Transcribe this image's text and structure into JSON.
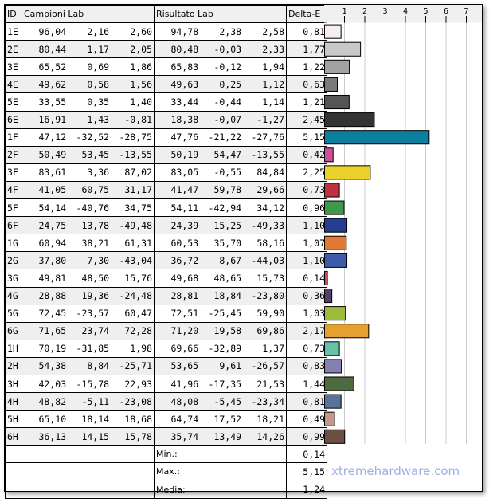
{
  "headers": {
    "id": "ID",
    "samples": "Campioni Lab",
    "result": "Risultato Lab",
    "delta": "Delta-E"
  },
  "chart_data": {
    "type": "bar",
    "orientation": "horizontal",
    "xlim": [
      0,
      7.7
    ],
    "ticks": [
      1,
      2,
      3,
      4,
      5,
      6,
      7
    ],
    "grid": true,
    "rows": [
      {
        "id": "1E",
        "s": [
          "96,04",
          "2,16",
          "2,60"
        ],
        "r": [
          "94,78",
          "2,38",
          "2,58"
        ],
        "de": 0.81,
        "color": "#f7eeee"
      },
      {
        "id": "2E",
        "s": [
          "80,44",
          "1,17",
          "2,05"
        ],
        "r": [
          "80,48",
          "-0,03",
          "2,33"
        ],
        "de": 1.77,
        "color": "#c8c8c6"
      },
      {
        "id": "3E",
        "s": [
          "65,52",
          "0,69",
          "1,86"
        ],
        "r": [
          "65,83",
          "-0,12",
          "1,94"
        ],
        "de": 1.22,
        "color": "#a2a2a0"
      },
      {
        "id": "4E",
        "s": [
          "49,62",
          "0,58",
          "1,56"
        ],
        "r": [
          "49,63",
          "0,25",
          "1,12"
        ],
        "de": 0.63,
        "color": "#7a7a7a"
      },
      {
        "id": "5E",
        "s": [
          "33,55",
          "0,35",
          "1,40"
        ],
        "r": [
          "33,44",
          "-0,44",
          "1,14"
        ],
        "de": 1.21,
        "color": "#555555"
      },
      {
        "id": "6E",
        "s": [
          "16,91",
          "1,43",
          "-0,81"
        ],
        "r": [
          "18,38",
          "-0,07",
          "-1,27"
        ],
        "de": 2.45,
        "color": "#333333"
      },
      {
        "id": "1F",
        "s": [
          "47,12",
          "-32,52",
          "-28,75"
        ],
        "r": [
          "47,76",
          "-21,22",
          "-27,76"
        ],
        "de": 5.15,
        "color": "#0a7f9e"
      },
      {
        "id": "2F",
        "s": [
          "50,49",
          "53,45",
          "-13,55"
        ],
        "r": [
          "50,19",
          "54,47",
          "-13,55"
        ],
        "de": 0.42,
        "color": "#cc4f98"
      },
      {
        "id": "3F",
        "s": [
          "83,61",
          "3,36",
          "87,02"
        ],
        "r": [
          "83,05",
          "-0,55",
          "84,84"
        ],
        "de": 2.25,
        "color": "#ecd12c"
      },
      {
        "id": "4F",
        "s": [
          "41,05",
          "60,75",
          "31,17"
        ],
        "r": [
          "41,47",
          "59,78",
          "29,66"
        ],
        "de": 0.73,
        "color": "#c13040"
      },
      {
        "id": "5F",
        "s": [
          "54,14",
          "-40,76",
          "34,75"
        ],
        "r": [
          "54,11",
          "-42,94",
          "34,12"
        ],
        "de": 0.96,
        "color": "#3c9a48"
      },
      {
        "id": "6F",
        "s": [
          "24,75",
          "13,78",
          "-49,48"
        ],
        "r": [
          "24,39",
          "15,25",
          "-49,33"
        ],
        "de": 1.1,
        "color": "#263d90"
      },
      {
        "id": "1G",
        "s": [
          "60,94",
          "38,21",
          "61,31"
        ],
        "r": [
          "60,53",
          "35,70",
          "58,16"
        ],
        "de": 1.07,
        "color": "#e27a35"
      },
      {
        "id": "2G",
        "s": [
          "37,80",
          "7,30",
          "-43,04"
        ],
        "r": [
          "36,72",
          "8,67",
          "-44,03"
        ],
        "de": 1.1,
        "color": "#3d5ba8"
      },
      {
        "id": "3G",
        "s": [
          "49,81",
          "48,50",
          "15,76"
        ],
        "r": [
          "49,68",
          "48,65",
          "15,73"
        ],
        "de": 0.14,
        "color": "#c24d60"
      },
      {
        "id": "4G",
        "s": [
          "28,88",
          "19,36",
          "-24,48"
        ],
        "r": [
          "28,81",
          "18,84",
          "-23,80"
        ],
        "de": 0.36,
        "color": "#563c6c"
      },
      {
        "id": "5G",
        "s": [
          "72,45",
          "-23,57",
          "60,47"
        ],
        "r": [
          "72,51",
          "-25,45",
          "59,90"
        ],
        "de": 1.03,
        "color": "#9dbd3a"
      },
      {
        "id": "6G",
        "s": [
          "71,65",
          "23,74",
          "72,28"
        ],
        "r": [
          "71,20",
          "19,58",
          "69,86"
        ],
        "de": 2.17,
        "color": "#e6a030"
      },
      {
        "id": "1H",
        "s": [
          "70,19",
          "-31,85",
          "1,98"
        ],
        "r": [
          "69,66",
          "-32,89",
          "1,37"
        ],
        "de": 0.73,
        "color": "#67c0a8"
      },
      {
        "id": "2H",
        "s": [
          "54,38",
          "8,84",
          "-25,71"
        ],
        "r": [
          "53,65",
          "9,61",
          "-26,57"
        ],
        "de": 0.83,
        "color": "#8580b0"
      },
      {
        "id": "3H",
        "s": [
          "42,03",
          "-15,78",
          "22,93"
        ],
        "r": [
          "41,96",
          "-17,35",
          "21,53"
        ],
        "de": 1.44,
        "color": "#4e6b40"
      },
      {
        "id": "4H",
        "s": [
          "48,82",
          "-5,11",
          "-23,08"
        ],
        "r": [
          "48,08",
          "-5,45",
          "-23,34"
        ],
        "de": 0.81,
        "color": "#56739a"
      },
      {
        "id": "5H",
        "s": [
          "65,10",
          "18,14",
          "18,68"
        ],
        "r": [
          "64,74",
          "17,52",
          "18,21"
        ],
        "de": 0.49,
        "color": "#c9978a"
      },
      {
        "id": "6H",
        "s": [
          "36,13",
          "14,15",
          "15,78"
        ],
        "r": [
          "35,74",
          "13,49",
          "14,26"
        ],
        "de": 0.99,
        "color": "#6b4e44"
      }
    ]
  },
  "summary": [
    {
      "label": "Min.:",
      "value": "0,14"
    },
    {
      "label": "Max.:",
      "value": "5,15"
    },
    {
      "label": "Media:",
      "value": "1,24"
    }
  ],
  "watermark": "xtremehardware.com"
}
